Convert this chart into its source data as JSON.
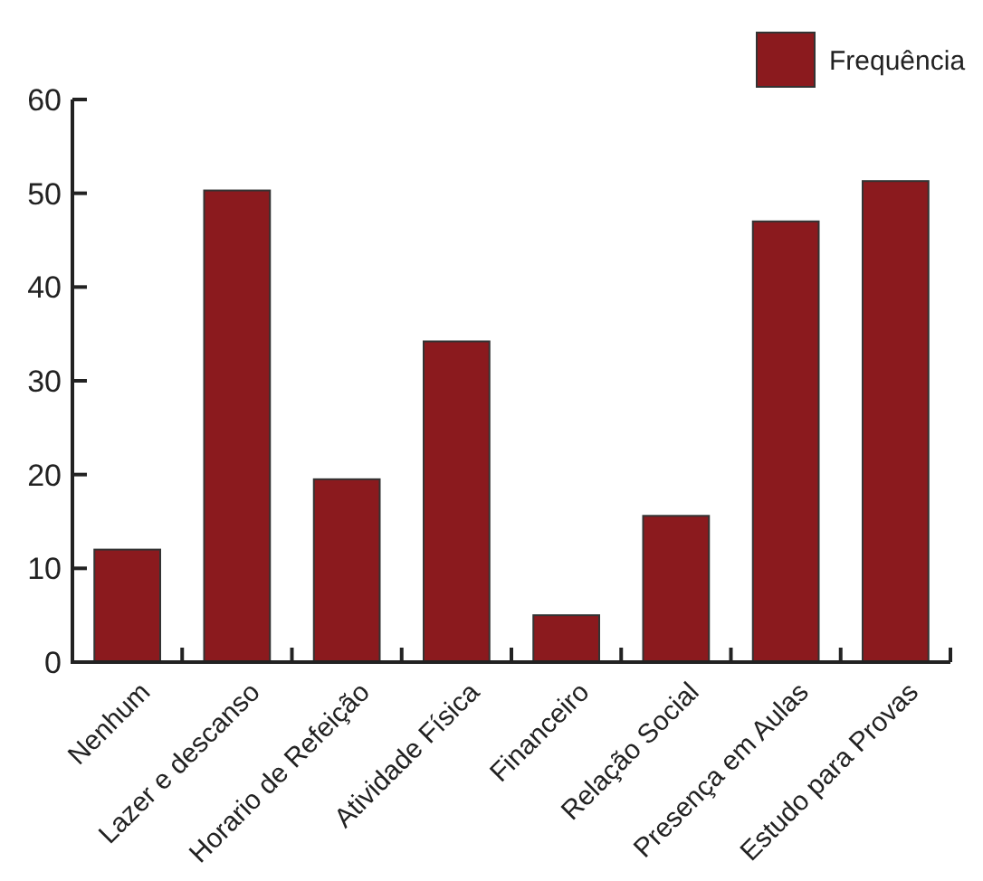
{
  "chart_data": {
    "type": "bar",
    "categories": [
      "Nenhum",
      "Lazer e descanso",
      "Horario de Refeição",
      "Atividade Física",
      "Financeiro",
      "Relação Social",
      "Presença em Aulas",
      "Estudo para Provas"
    ],
    "series": [
      {
        "name": "Frequência",
        "color": "#8b1a1e",
        "values": [
          12,
          50.3,
          19.5,
          34.2,
          5,
          15.6,
          47,
          51.3
        ]
      }
    ],
    "ylim": [
      0,
      60
    ],
    "yticks": [
      0,
      10,
      20,
      30,
      40,
      50,
      60
    ],
    "legend": "top right",
    "grid": false
  }
}
